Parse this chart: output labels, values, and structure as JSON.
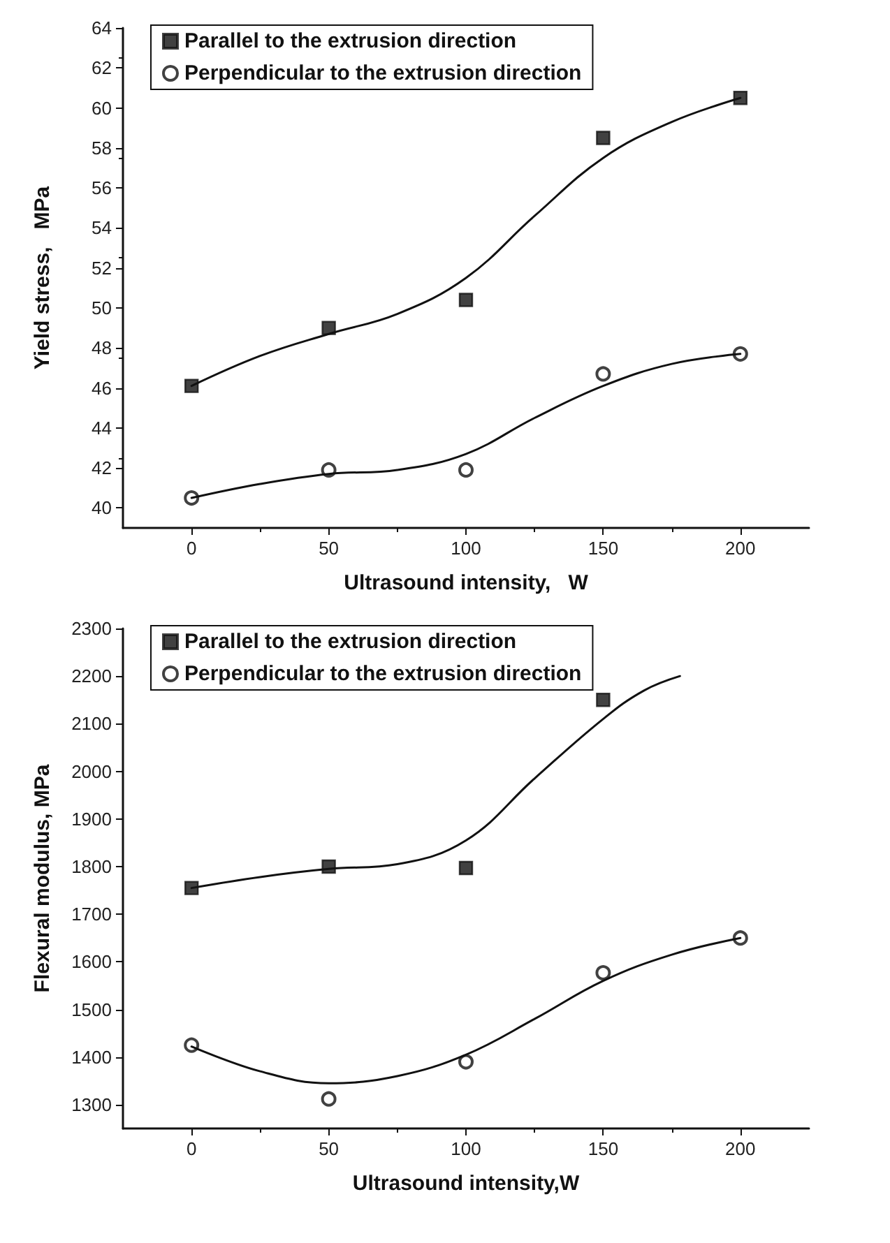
{
  "chart_data": [
    {
      "type": "scatter",
      "xlabel": "Ultrasound intensity,   W",
      "ylabel": "Yield stress,   MPa",
      "xlim": [
        -25,
        225
      ],
      "xticks": [
        0,
        50,
        100,
        150,
        200
      ],
      "ylim": [
        39,
        64
      ],
      "yticks": [
        40,
        42,
        44,
        46,
        48,
        50,
        52,
        54,
        56,
        58,
        60,
        62,
        64
      ],
      "grid": false,
      "legend": "top",
      "x": [
        0,
        50,
        100,
        150,
        200
      ],
      "series": [
        {
          "name": "Parallel to the extrusion direction",
          "color": "#111111",
          "marker": "square",
          "values": [
            46.1,
            49.0,
            50.4,
            58.5,
            60.5
          ]
        },
        {
          "name": "Perpendicular to the extrusion direction",
          "color": "#111111",
          "marker": "circle",
          "values": [
            40.5,
            41.9,
            41.9,
            46.7,
            47.7
          ]
        },
        {
          "type": "line",
          "color": "#111111",
          "x": [
            0,
            25,
            50,
            75,
            100,
            125,
            150,
            175,
            200
          ],
          "values": [
            46.1,
            47.6,
            48.7,
            49.7,
            51.5,
            54.6,
            57.5,
            59.3,
            60.5
          ]
        },
        {
          "type": "line",
          "color": "#111111",
          "x": [
            0,
            25,
            50,
            75,
            100,
            125,
            150,
            175,
            200
          ],
          "values": [
            40.5,
            41.2,
            41.7,
            41.9,
            42.7,
            44.5,
            46.1,
            47.2,
            47.7
          ]
        }
      ]
    },
    {
      "type": "scatter",
      "xlabel": "Ultrasound intensity,W",
      "ylabel": "Flexural modulus, MPa",
      "xlim": [
        -25,
        225
      ],
      "xticks": [
        0,
        50,
        100,
        150,
        200
      ],
      "ylim": [
        1250,
        2300
      ],
      "yticks": [
        1300,
        1400,
        1500,
        1600,
        1700,
        1800,
        1900,
        2000,
        2100,
        2200,
        2300
      ],
      "grid": false,
      "legend": "top",
      "x": [
        0,
        50,
        100,
        150,
        200
      ],
      "series": [
        {
          "name": "Parallel to the extrusion direction",
          "color": "#111111",
          "marker": "square",
          "values": [
            1755,
            1800,
            1797,
            2150,
            null
          ]
        },
        {
          "name": "Perpendicular to the extrusion direction",
          "color": "#111111",
          "marker": "circle",
          "values": [
            1425,
            1312,
            1390,
            1577,
            1650
          ]
        },
        {
          "type": "line",
          "color": "#111111",
          "x": [
            0,
            25,
            50,
            75,
            100,
            125,
            150,
            165,
            178
          ],
          "values": [
            1755,
            1778,
            1795,
            1805,
            1855,
            1985,
            2110,
            2170,
            2200
          ]
        },
        {
          "type": "line",
          "color": "#111111",
          "x": [
            0,
            25,
            50,
            75,
            100,
            125,
            150,
            175,
            200
          ],
          "values": [
            1422,
            1370,
            1345,
            1360,
            1405,
            1480,
            1560,
            1615,
            1650
          ]
        }
      ]
    }
  ]
}
